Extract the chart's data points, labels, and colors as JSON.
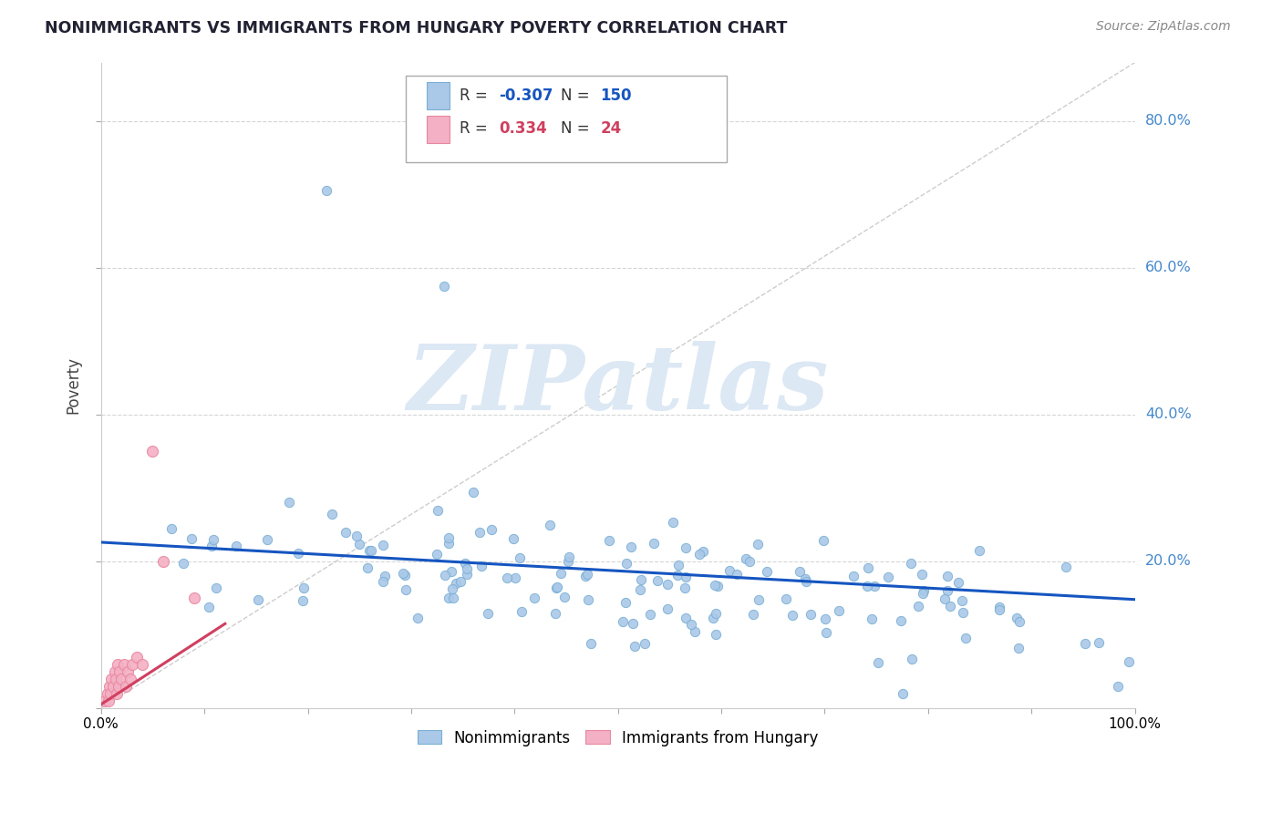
{
  "title": "NONIMMIGRANTS VS IMMIGRANTS FROM HUNGARY POVERTY CORRELATION CHART",
  "source_text": "Source: ZipAtlas.com",
  "ylabel": "Poverty",
  "nonimmigrant_color": "#aac8e8",
  "nonimmigrant_edge": "#7aafd4",
  "immigrant_color": "#f4b0c4",
  "immigrant_edge": "#e888a0",
  "trend_blue": "#1555c0",
  "trend_pink": "#d04060",
  "ref_line_color": "#b8b8b8",
  "grid_color": "#cccccc",
  "background": "#ffffff",
  "watermark_text": "ZIPatlas",
  "watermark_color": "#dce8f4",
  "R1": "-0.307",
  "N1": "150",
  "R2": "0.334",
  "N2": "24",
  "stat_color_blue": "#1555c0",
  "stat_color_pink": "#d04060",
  "stat_color_black": "#333333",
  "right_axis_color": "#4488cc",
  "title_color": "#222233",
  "source_color": "#888888"
}
